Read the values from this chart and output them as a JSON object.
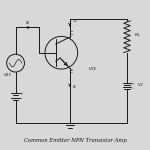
{
  "bg_color": "#d8d8d8",
  "line_color": "#1a1a1a",
  "text_color": "#111111",
  "title_text": "Common Emitter NPN Transistor Amp",
  "title_fontsize": 3.8,
  "label_fontsize": 3.8,
  "lw": 0.7
}
